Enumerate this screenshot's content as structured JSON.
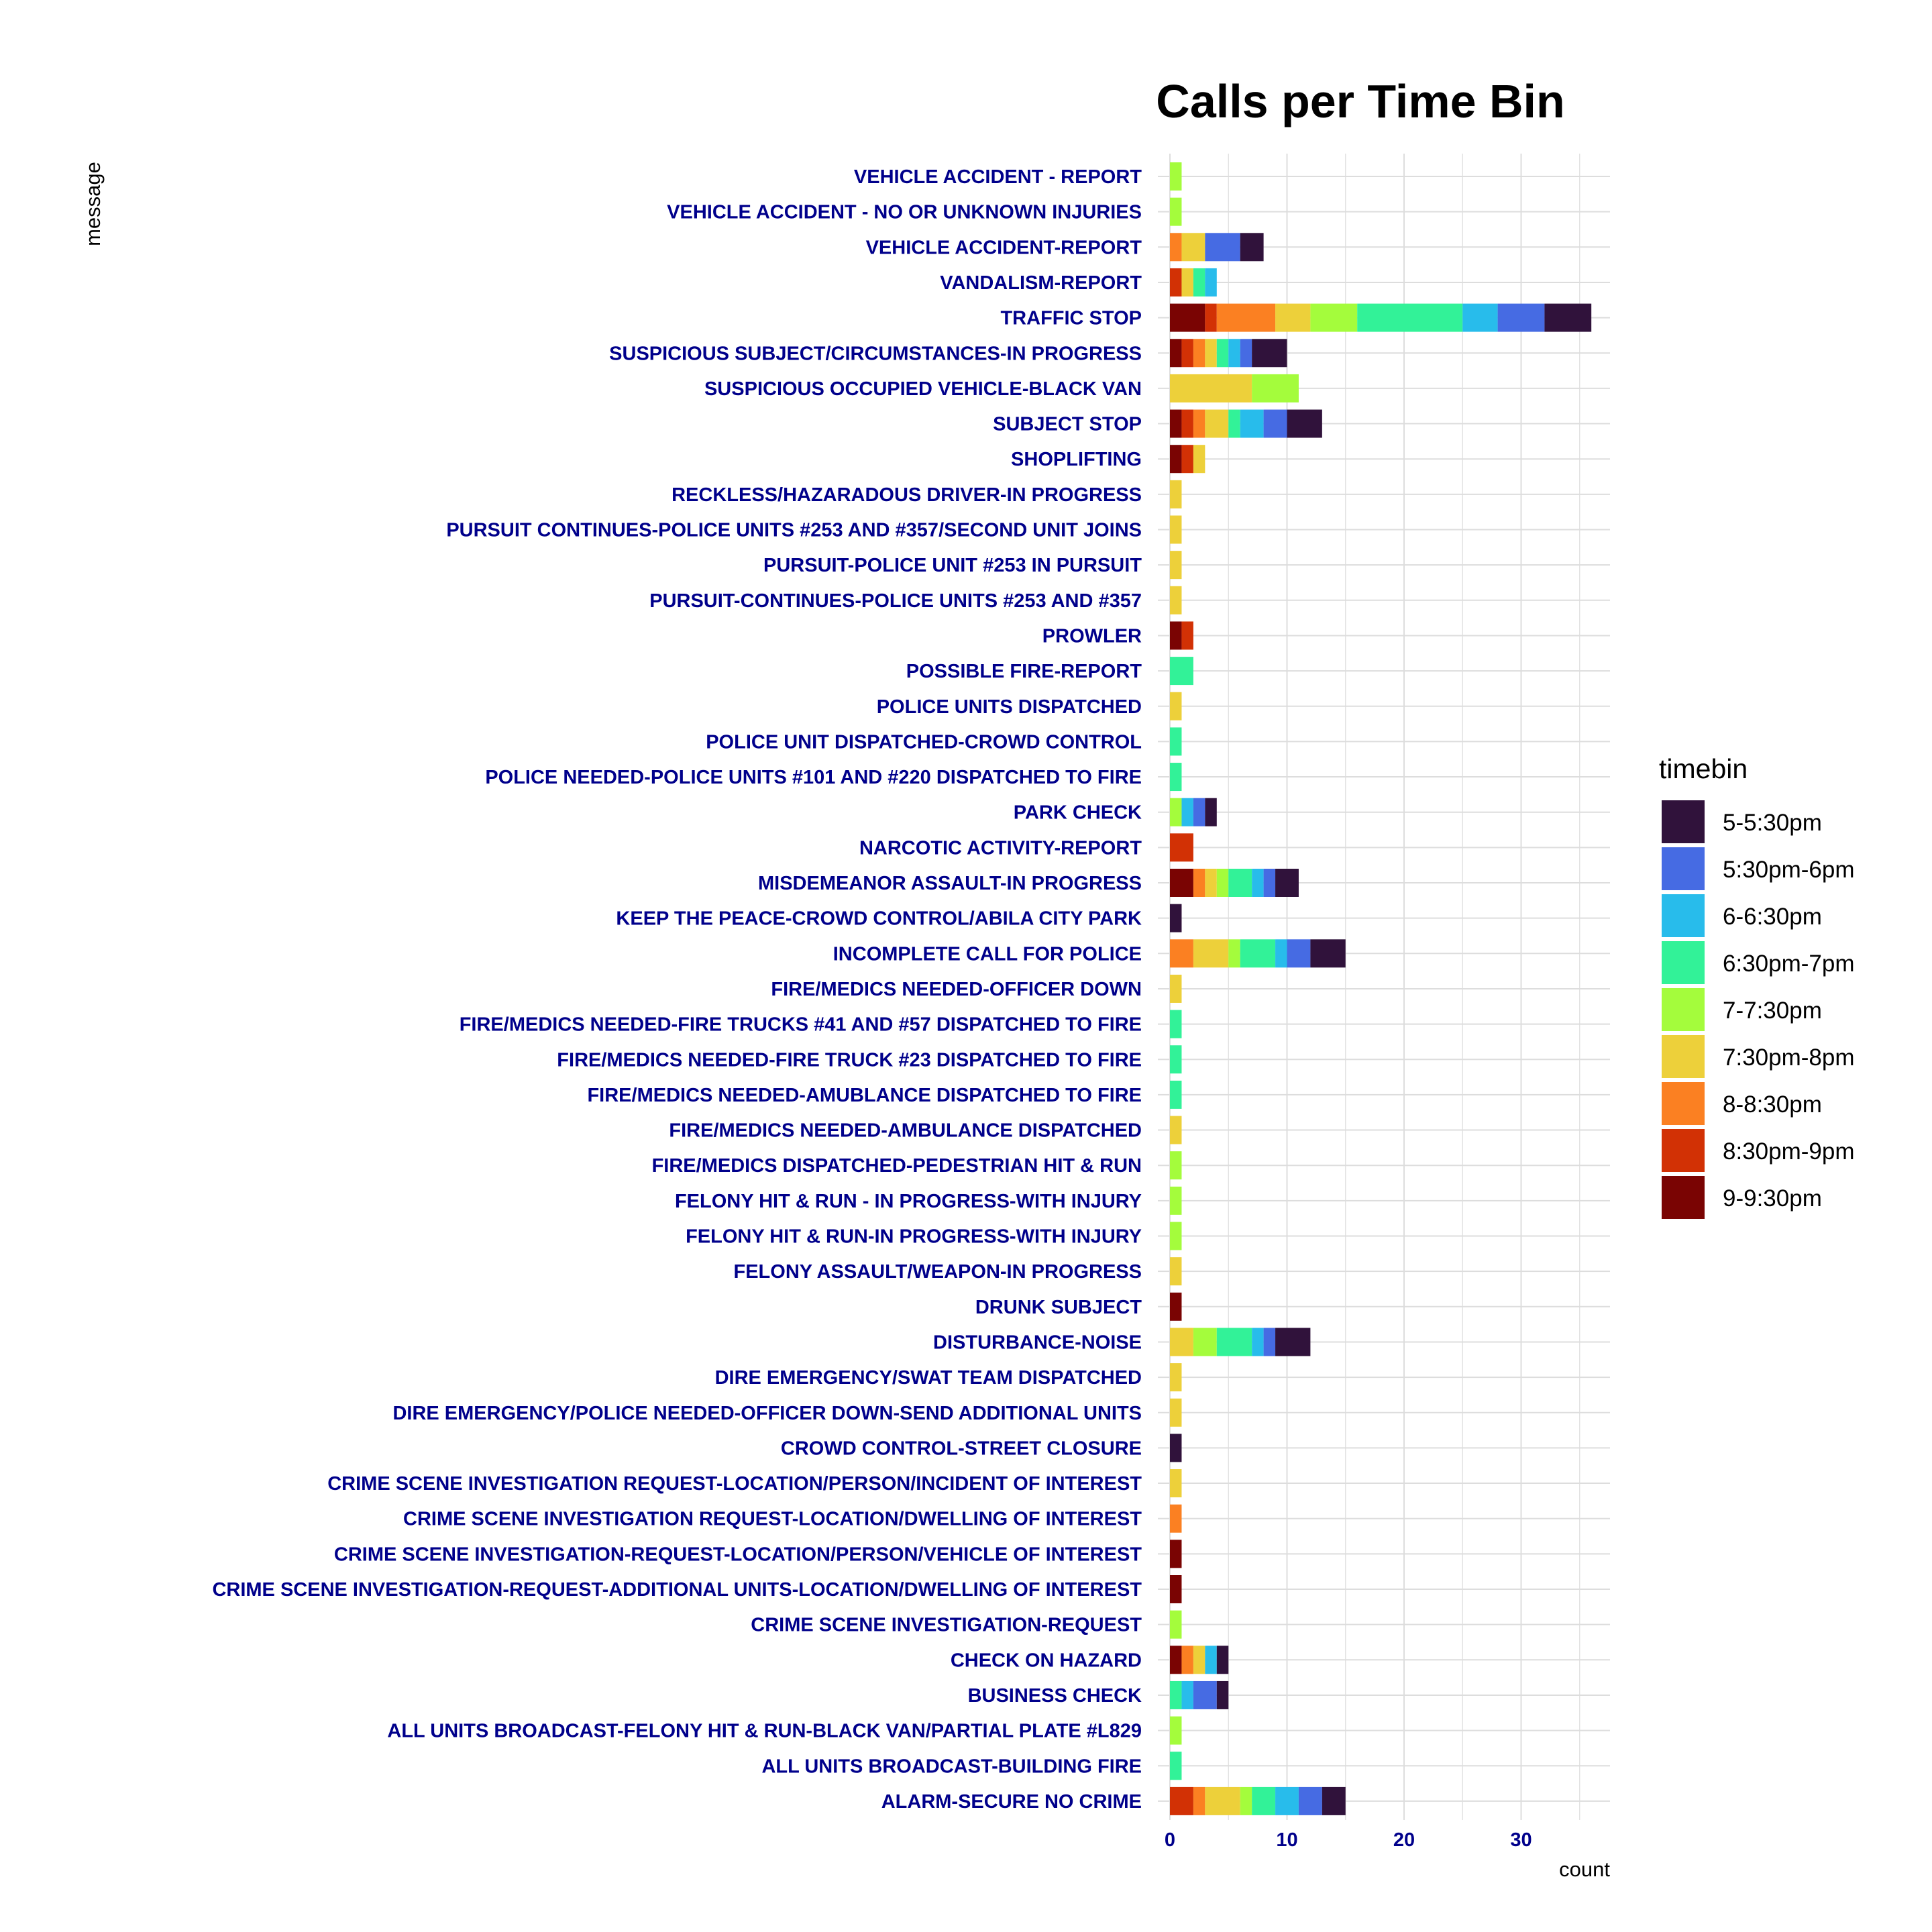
{
  "chart_data": {
    "type": "bar",
    "orientation": "horizontal",
    "stacked": true,
    "title": "Calls per Time Bin",
    "xlabel": "count",
    "ylabel": "message",
    "xlim": [
      0,
      38
    ],
    "x_ticks": [
      0,
      10,
      20,
      30
    ],
    "grid": true,
    "legend": {
      "title": "timebin",
      "position": "right"
    },
    "categories": [
      "VEHICLE ACCIDENT - REPORT",
      "VEHICLE ACCIDENT - NO OR UNKNOWN INJURIES",
      "VEHICLE ACCIDENT-REPORT",
      "VANDALISM-REPORT",
      "TRAFFIC STOP",
      "SUSPICIOUS SUBJECT/CIRCUMSTANCES-IN PROGRESS",
      "SUSPICIOUS OCCUPIED VEHICLE-BLACK VAN",
      "SUBJECT STOP",
      "SHOPLIFTING",
      "RECKLESS/HAZARADOUS DRIVER-IN PROGRESS",
      "PURSUIT CONTINUES-POLICE UNITS #253 AND #357/SECOND UNIT JOINS",
      "PURSUIT-POLICE UNIT #253 IN PURSUIT",
      "PURSUIT-CONTINUES-POLICE UNITS #253 AND #357",
      "PROWLER",
      "POSSIBLE FIRE-REPORT",
      "POLICE UNITS DISPATCHED",
      "POLICE UNIT DISPATCHED-CROWD CONTROL",
      "POLICE NEEDED-POLICE UNITS #101 AND #220 DISPATCHED TO FIRE",
      "PARK CHECK",
      "NARCOTIC ACTIVITY-REPORT",
      "MISDEMEANOR ASSAULT-IN PROGRESS",
      "KEEP THE PEACE-CROWD CONTROL/ABILA CITY PARK",
      "INCOMPLETE CALL FOR POLICE",
      "FIRE/MEDICS NEEDED-OFFICER DOWN",
      "FIRE/MEDICS NEEDED-FIRE TRUCKS #41 AND #57 DISPATCHED TO FIRE",
      "FIRE/MEDICS NEEDED-FIRE TRUCK #23 DISPATCHED TO FIRE",
      "FIRE/MEDICS NEEDED-AMUBLANCE DISPATCHED TO FIRE",
      "FIRE/MEDICS NEEDED-AMBULANCE DISPATCHED",
      "FIRE/MEDICS DISPATCHED-PEDESTRIAN HIT & RUN",
      "FELONY HIT & RUN - IN PROGRESS-WITH INJURY",
      "FELONY HIT & RUN-IN PROGRESS-WITH INJURY",
      "FELONY ASSAULT/WEAPON-IN PROGRESS",
      "DRUNK SUBJECT",
      "DISTURBANCE-NOISE",
      "DIRE EMERGENCY/SWAT TEAM DISPATCHED",
      "DIRE EMERGENCY/POLICE NEEDED-OFFICER DOWN-SEND ADDITIONAL UNITS",
      "CROWD CONTROL-STREET CLOSURE",
      "CRIME SCENE INVESTIGATION REQUEST-LOCATION/PERSON/INCIDENT OF INTEREST",
      "CRIME SCENE INVESTIGATION REQUEST-LOCATION/DWELLING OF INTEREST",
      "CRIME SCENE INVESTIGATION-REQUEST-LOCATION/PERSON/VEHICLE OF INTEREST",
      "CRIME SCENE INVESTIGATION-REQUEST-ADDITIONAL UNITS-LOCATION/DWELLING OF INTEREST",
      "CRIME SCENE INVESTIGATION-REQUEST",
      "CHECK ON HAZARD",
      "BUSINESS CHECK",
      "ALL UNITS BROADCAST-FELONY HIT & RUN-BLACK VAN/PARTIAL PLATE #L829",
      "ALL UNITS BROADCAST-BUILDING FIRE",
      "ALARM-SECURE NO CRIME"
    ],
    "series": [
      {
        "name": "9-9:30pm",
        "color": "#7a0403",
        "values": [
          0,
          0,
          0,
          0,
          3,
          1,
          0,
          1,
          1,
          0,
          0,
          0,
          0,
          1,
          0,
          0,
          0,
          0,
          0,
          0,
          2,
          0,
          0,
          0,
          0,
          0,
          0,
          0,
          0,
          0,
          0,
          0,
          1,
          0,
          0,
          0,
          0,
          0,
          0,
          1,
          1,
          0,
          1,
          0,
          0,
          0,
          0
        ]
      },
      {
        "name": "8:30pm-9pm",
        "color": "#d23105",
        "values": [
          0,
          0,
          0,
          1,
          1,
          1,
          0,
          1,
          1,
          0,
          0,
          0,
          0,
          1,
          0,
          0,
          0,
          0,
          0,
          2,
          0,
          0,
          0,
          0,
          0,
          0,
          0,
          0,
          0,
          0,
          0,
          0,
          0,
          0,
          0,
          0,
          0,
          0,
          0,
          0,
          0,
          0,
          0,
          0,
          0,
          0,
          2
        ]
      },
      {
        "name": "8-8:30pm",
        "color": "#fb8022",
        "values": [
          0,
          0,
          1,
          0,
          5,
          1,
          0,
          1,
          0,
          0,
          0,
          0,
          0,
          0,
          0,
          0,
          0,
          0,
          0,
          0,
          1,
          0,
          2,
          0,
          0,
          0,
          0,
          0,
          0,
          0,
          0,
          0,
          0,
          0,
          0,
          0,
          0,
          0,
          1,
          0,
          0,
          0,
          1,
          0,
          0,
          0,
          1
        ]
      },
      {
        "name": "7:30pm-8pm",
        "color": "#edd03a",
        "values": [
          0,
          0,
          2,
          1,
          3,
          1,
          7,
          2,
          1,
          1,
          1,
          1,
          1,
          0,
          0,
          1,
          0,
          0,
          0,
          0,
          1,
          0,
          3,
          1,
          0,
          0,
          0,
          1,
          0,
          0,
          0,
          1,
          0,
          2,
          1,
          1,
          0,
          1,
          0,
          0,
          0,
          0,
          1,
          0,
          0,
          0,
          3
        ]
      },
      {
        "name": "7-7:30pm",
        "color": "#a4fc3c",
        "values": [
          1,
          1,
          0,
          0,
          4,
          0,
          4,
          0,
          0,
          0,
          0,
          0,
          0,
          0,
          0,
          0,
          0,
          0,
          1,
          0,
          1,
          0,
          1,
          0,
          0,
          0,
          0,
          0,
          1,
          1,
          1,
          0,
          0,
          2,
          0,
          0,
          0,
          0,
          0,
          0,
          0,
          1,
          0,
          0,
          1,
          0,
          1
        ]
      },
      {
        "name": "6:30pm-7pm",
        "color": "#32f298",
        "values": [
          0,
          0,
          0,
          1,
          9,
          1,
          0,
          1,
          0,
          0,
          0,
          0,
          0,
          0,
          2,
          0,
          1,
          1,
          0,
          0,
          2,
          0,
          3,
          0,
          1,
          1,
          1,
          0,
          0,
          0,
          0,
          0,
          0,
          3,
          0,
          0,
          0,
          0,
          0,
          0,
          0,
          0,
          0,
          1,
          0,
          1,
          2
        ]
      },
      {
        "name": "6-6:30pm",
        "color": "#28bceb",
        "values": [
          0,
          0,
          0,
          1,
          3,
          1,
          0,
          2,
          0,
          0,
          0,
          0,
          0,
          0,
          0,
          0,
          0,
          0,
          1,
          0,
          1,
          0,
          1,
          0,
          0,
          0,
          0,
          0,
          0,
          0,
          0,
          0,
          0,
          1,
          0,
          0,
          0,
          0,
          0,
          0,
          0,
          0,
          1,
          1,
          0,
          0,
          2
        ]
      },
      {
        "name": "5:30pm-6pm",
        "color": "#466be3",
        "values": [
          0,
          0,
          3,
          0,
          4,
          1,
          0,
          2,
          0,
          0,
          0,
          0,
          0,
          0,
          0,
          0,
          0,
          0,
          1,
          0,
          1,
          0,
          2,
          0,
          0,
          0,
          0,
          0,
          0,
          0,
          0,
          0,
          0,
          1,
          0,
          0,
          0,
          0,
          0,
          0,
          0,
          0,
          0,
          2,
          0,
          0,
          2
        ]
      },
      {
        "name": "5-5:30pm",
        "color": "#30123b",
        "values": [
          0,
          0,
          2,
          0,
          4,
          3,
          0,
          3,
          0,
          0,
          0,
          0,
          0,
          0,
          0,
          0,
          0,
          0,
          1,
          0,
          2,
          1,
          3,
          0,
          0,
          0,
          0,
          0,
          0,
          0,
          0,
          0,
          0,
          3,
          0,
          0,
          1,
          0,
          0,
          0,
          0,
          0,
          1,
          1,
          0,
          0,
          2
        ]
      }
    ],
    "legend_order": [
      "5-5:30pm",
      "5:30pm-6pm",
      "6-6:30pm",
      "6:30pm-7pm",
      "7-7:30pm",
      "7:30pm-8pm",
      "8-8:30pm",
      "8:30pm-9pm",
      "9-9:30pm"
    ],
    "colors": {
      "label_color": "#00008b",
      "grid_color": "#dddddd"
    }
  }
}
